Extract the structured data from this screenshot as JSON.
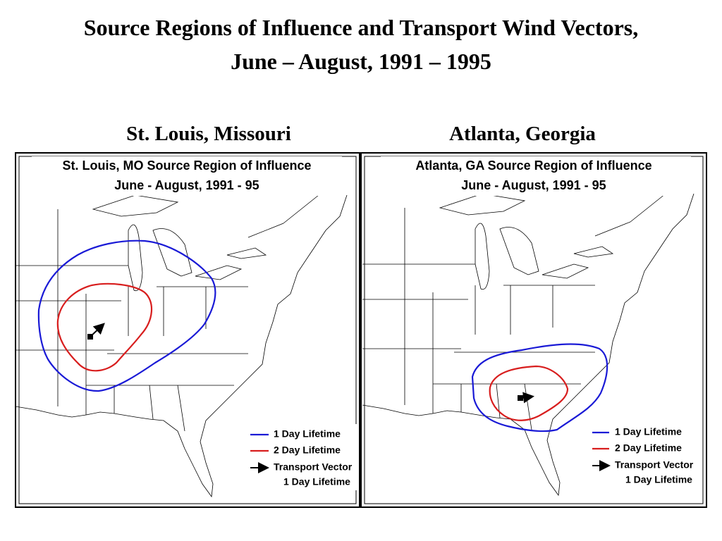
{
  "title": [
    "Source Regions of Influence and Transport Wind Vectors,",
    "June – August, 1991 – 1995"
  ],
  "panels": [
    {
      "caption": "St. Louis, Missouri",
      "map_title": [
        "St. Louis, MO Source Region of Influence",
        "June - August, 1991 - 95"
      ],
      "legend": {
        "one_day": "1 Day Lifetime",
        "two_day": "2 Day Lifetime",
        "vector": [
          "Transport Vector",
          "1 Day Lifetime"
        ]
      }
    },
    {
      "caption": "Atlanta, Georgia",
      "map_title": [
        "Atlanta, GA Source Region of Influence",
        "June - August, 1991 - 95"
      ],
      "legend": {
        "one_day": "1 Day Lifetime",
        "two_day": "2 Day Lifetime",
        "vector": [
          "Transport Vector",
          "1 Day Lifetime"
        ]
      }
    }
  ]
}
